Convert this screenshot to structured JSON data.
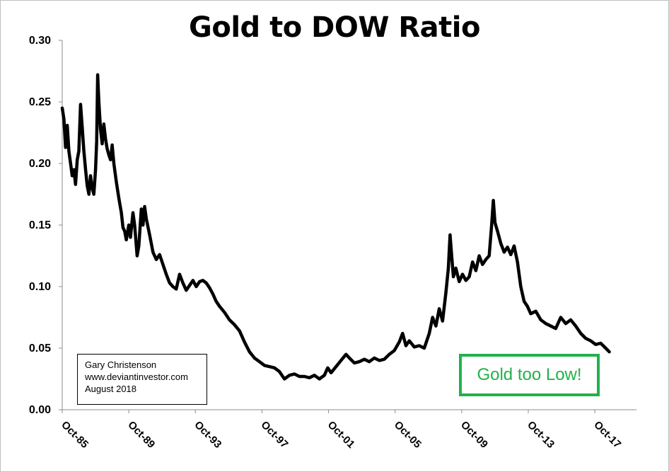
{
  "chart_data": {
    "type": "line",
    "title": "Gold to DOW Ratio",
    "xlabel": "",
    "ylabel": "",
    "ylim": [
      0,
      0.3
    ],
    "y_ticks": [
      "0.00",
      "0.05",
      "0.10",
      "0.15",
      "0.20",
      "0.25",
      "0.30"
    ],
    "x_tick_labels": [
      "Oct-85",
      "Oct-89",
      "Oct-93",
      "Oct-97",
      "Oct-01",
      "Oct-05",
      "Oct-09",
      "Oct-13",
      "Oct-17"
    ],
    "x_range_years": [
      1985.75,
      2020.25
    ],
    "line_color": "#000000",
    "series": [
      {
        "name": "Gold/DOW",
        "points": [
          [
            1985.75,
            0.245
          ],
          [
            1985.85,
            0.236
          ],
          [
            1985.95,
            0.213
          ],
          [
            1986.05,
            0.231
          ],
          [
            1986.15,
            0.21
          ],
          [
            1986.25,
            0.2
          ],
          [
            1986.35,
            0.19
          ],
          [
            1986.45,
            0.195
          ],
          [
            1986.55,
            0.183
          ],
          [
            1986.65,
            0.203
          ],
          [
            1986.75,
            0.21
          ],
          [
            1986.85,
            0.248
          ],
          [
            1986.95,
            0.23
          ],
          [
            1987.05,
            0.21
          ],
          [
            1987.15,
            0.195
          ],
          [
            1987.25,
            0.182
          ],
          [
            1987.35,
            0.175
          ],
          [
            1987.45,
            0.19
          ],
          [
            1987.55,
            0.18
          ],
          [
            1987.65,
            0.175
          ],
          [
            1987.75,
            0.195
          ],
          [
            1987.82,
            0.218
          ],
          [
            1987.88,
            0.272
          ],
          [
            1987.95,
            0.25
          ],
          [
            1988.05,
            0.228
          ],
          [
            1988.15,
            0.216
          ],
          [
            1988.25,
            0.232
          ],
          [
            1988.35,
            0.22
          ],
          [
            1988.45,
            0.212
          ],
          [
            1988.55,
            0.207
          ],
          [
            1988.65,
            0.203
          ],
          [
            1988.75,
            0.215
          ],
          [
            1988.85,
            0.2
          ],
          [
            1989.0,
            0.185
          ],
          [
            1989.15,
            0.172
          ],
          [
            1989.3,
            0.16
          ],
          [
            1989.4,
            0.148
          ],
          [
            1989.5,
            0.145
          ],
          [
            1989.6,
            0.138
          ],
          [
            1989.75,
            0.15
          ],
          [
            1989.85,
            0.14
          ],
          [
            1990.0,
            0.16
          ],
          [
            1990.1,
            0.15
          ],
          [
            1990.25,
            0.125
          ],
          [
            1990.35,
            0.133
          ],
          [
            1990.5,
            0.163
          ],
          [
            1990.6,
            0.15
          ],
          [
            1990.7,
            0.165
          ],
          [
            1990.8,
            0.155
          ],
          [
            1991.0,
            0.142
          ],
          [
            1991.2,
            0.128
          ],
          [
            1991.4,
            0.122
          ],
          [
            1991.6,
            0.126
          ],
          [
            1991.8,
            0.118
          ],
          [
            1992.0,
            0.11
          ],
          [
            1992.2,
            0.103
          ],
          [
            1992.4,
            0.1
          ],
          [
            1992.6,
            0.098
          ],
          [
            1992.8,
            0.11
          ],
          [
            1993.0,
            0.103
          ],
          [
            1993.2,
            0.097
          ],
          [
            1993.4,
            0.101
          ],
          [
            1993.6,
            0.105
          ],
          [
            1993.8,
            0.1
          ],
          [
            1994.0,
            0.104
          ],
          [
            1994.2,
            0.105
          ],
          [
            1994.4,
            0.103
          ],
          [
            1994.6,
            0.099
          ],
          [
            1994.8,
            0.094
          ],
          [
            1995.0,
            0.088
          ],
          [
            1995.2,
            0.084
          ],
          [
            1995.5,
            0.079
          ],
          [
            1995.8,
            0.073
          ],
          [
            1996.1,
            0.069
          ],
          [
            1996.4,
            0.064
          ],
          [
            1996.7,
            0.055
          ],
          [
            1997.0,
            0.047
          ],
          [
            1997.3,
            0.042
          ],
          [
            1997.6,
            0.039
          ],
          [
            1997.9,
            0.036
          ],
          [
            1998.2,
            0.035
          ],
          [
            1998.5,
            0.034
          ],
          [
            1998.8,
            0.031
          ],
          [
            1999.1,
            0.025
          ],
          [
            1999.4,
            0.028
          ],
          [
            1999.7,
            0.029
          ],
          [
            2000.0,
            0.027
          ],
          [
            2000.3,
            0.027
          ],
          [
            2000.6,
            0.026
          ],
          [
            2000.9,
            0.028
          ],
          [
            2001.2,
            0.025
          ],
          [
            2001.5,
            0.028
          ],
          [
            2001.7,
            0.034
          ],
          [
            2001.9,
            0.03
          ],
          [
            2002.2,
            0.035
          ],
          [
            2002.5,
            0.04
          ],
          [
            2002.8,
            0.045
          ],
          [
            2003.0,
            0.042
          ],
          [
            2003.3,
            0.038
          ],
          [
            2003.6,
            0.039
          ],
          [
            2003.9,
            0.041
          ],
          [
            2004.2,
            0.039
          ],
          [
            2004.5,
            0.042
          ],
          [
            2004.8,
            0.04
          ],
          [
            2005.1,
            0.041
          ],
          [
            2005.4,
            0.045
          ],
          [
            2005.7,
            0.048
          ],
          [
            2006.0,
            0.055
          ],
          [
            2006.2,
            0.062
          ],
          [
            2006.4,
            0.052
          ],
          [
            2006.6,
            0.056
          ],
          [
            2006.9,
            0.051
          ],
          [
            2007.2,
            0.052
          ],
          [
            2007.5,
            0.05
          ],
          [
            2007.8,
            0.062
          ],
          [
            2008.0,
            0.075
          ],
          [
            2008.2,
            0.068
          ],
          [
            2008.4,
            0.082
          ],
          [
            2008.6,
            0.072
          ],
          [
            2008.8,
            0.095
          ],
          [
            2008.95,
            0.115
          ],
          [
            2009.05,
            0.142
          ],
          [
            2009.15,
            0.125
          ],
          [
            2009.25,
            0.108
          ],
          [
            2009.4,
            0.115
          ],
          [
            2009.6,
            0.104
          ],
          [
            2009.8,
            0.11
          ],
          [
            2010.0,
            0.105
          ],
          [
            2010.2,
            0.108
          ],
          [
            2010.4,
            0.12
          ],
          [
            2010.6,
            0.113
          ],
          [
            2010.8,
            0.125
          ],
          [
            2011.0,
            0.118
          ],
          [
            2011.2,
            0.122
          ],
          [
            2011.4,
            0.125
          ],
          [
            2011.55,
            0.15
          ],
          [
            2011.65,
            0.17
          ],
          [
            2011.75,
            0.152
          ],
          [
            2011.9,
            0.145
          ],
          [
            2012.1,
            0.135
          ],
          [
            2012.3,
            0.128
          ],
          [
            2012.5,
            0.132
          ],
          [
            2012.7,
            0.126
          ],
          [
            2012.9,
            0.133
          ],
          [
            2013.1,
            0.12
          ],
          [
            2013.3,
            0.1
          ],
          [
            2013.5,
            0.088
          ],
          [
            2013.7,
            0.084
          ],
          [
            2013.9,
            0.078
          ],
          [
            2014.2,
            0.08
          ],
          [
            2014.5,
            0.073
          ],
          [
            2014.8,
            0.07
          ],
          [
            2015.1,
            0.068
          ],
          [
            2015.4,
            0.066
          ],
          [
            2015.7,
            0.075
          ],
          [
            2016.0,
            0.07
          ],
          [
            2016.3,
            0.073
          ],
          [
            2016.6,
            0.068
          ],
          [
            2016.9,
            0.062
          ],
          [
            2017.2,
            0.058
          ],
          [
            2017.5,
            0.056
          ],
          [
            2017.8,
            0.053
          ],
          [
            2018.1,
            0.054
          ],
          [
            2018.4,
            0.05
          ],
          [
            2018.62,
            0.047
          ]
        ]
      }
    ]
  },
  "credit": {
    "author": "Gary Christenson",
    "website": "www.deviantinvestor.com",
    "date": "August 2018"
  },
  "annotation": {
    "text": "Gold too Low!",
    "color": "#22b14c"
  }
}
